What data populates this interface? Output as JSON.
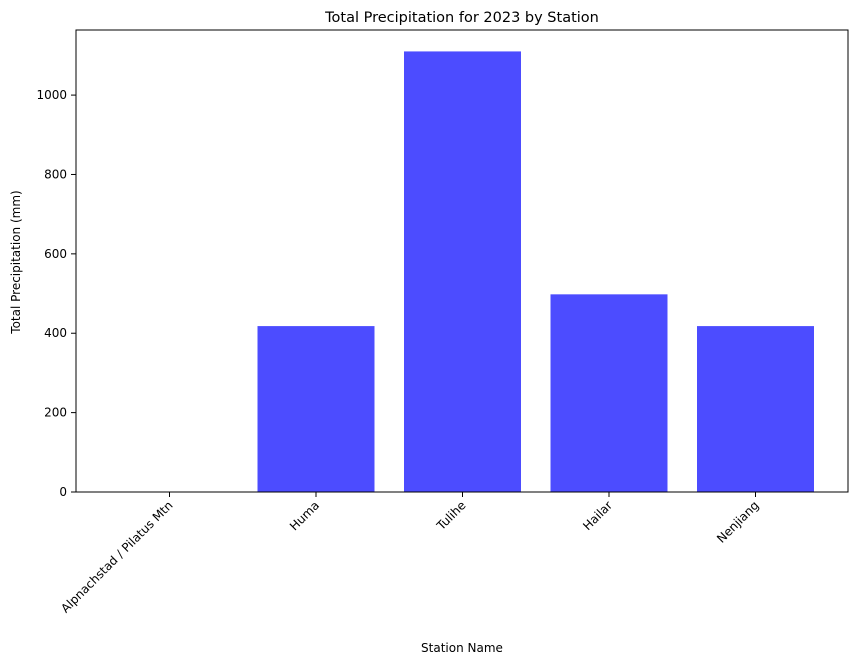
{
  "chart_data": {
    "type": "bar",
    "title": "Total Precipitation for 2023 by Station",
    "xlabel": "Station Name",
    "ylabel": "Total Precipitation (mm)",
    "categories": [
      "Alpnachstad / Pilatus Mtn",
      "Huma",
      "Tulihe",
      "Hailar",
      "Nenjiang"
    ],
    "values": [
      0,
      418,
      1110,
      498,
      418
    ],
    "ylim": [
      0,
      1164
    ],
    "yticks": [
      0,
      200,
      400,
      600,
      800,
      1000
    ],
    "bar_color": "#4c4cff",
    "grid": false,
    "legend": "none",
    "xtick_rotation": 45
  }
}
